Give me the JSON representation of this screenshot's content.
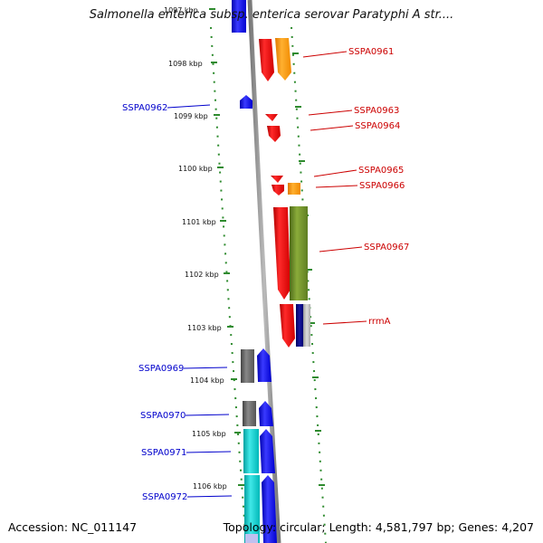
{
  "title": "Salmonella enterica subsp. enterica serovar Paratyphi A str....",
  "accession": "Accession: NC_011147",
  "footer_info": "Topology: circular; Length: 4,581,797 bp; Genes: 4,207",
  "colors": {
    "backbone": "#888888",
    "dotted_ring": "#2e8b2e",
    "left_label": "#0000cc",
    "right_label": "#cc0000",
    "red_gene": "#ee0000",
    "orange_gene": "#ff9900",
    "olive_gene": "#6b8e23",
    "blue_gene": "#0000ee",
    "navy_gene": "#000080",
    "gray_gene": "#666666",
    "cyan_gene": "#00cccc"
  },
  "kbp_markers": [
    "1097 kbp",
    "1098 kbp",
    "1099 kbp",
    "1100 kbp",
    "1101 kbp",
    "1102 kbp",
    "1103 kbp",
    "1104 kbp",
    "1105 kbp",
    "1106 kbp"
  ],
  "left_labels": [
    "SSPA0962",
    "SSPA0969",
    "SSPA0970",
    "SSPA0971",
    "SSPA0972"
  ],
  "right_labels": [
    "SSPA0961",
    "SSPA0963",
    "SSPA0964",
    "SSPA0965",
    "SSPA0966",
    "SSPA0967",
    "rrmA"
  ]
}
